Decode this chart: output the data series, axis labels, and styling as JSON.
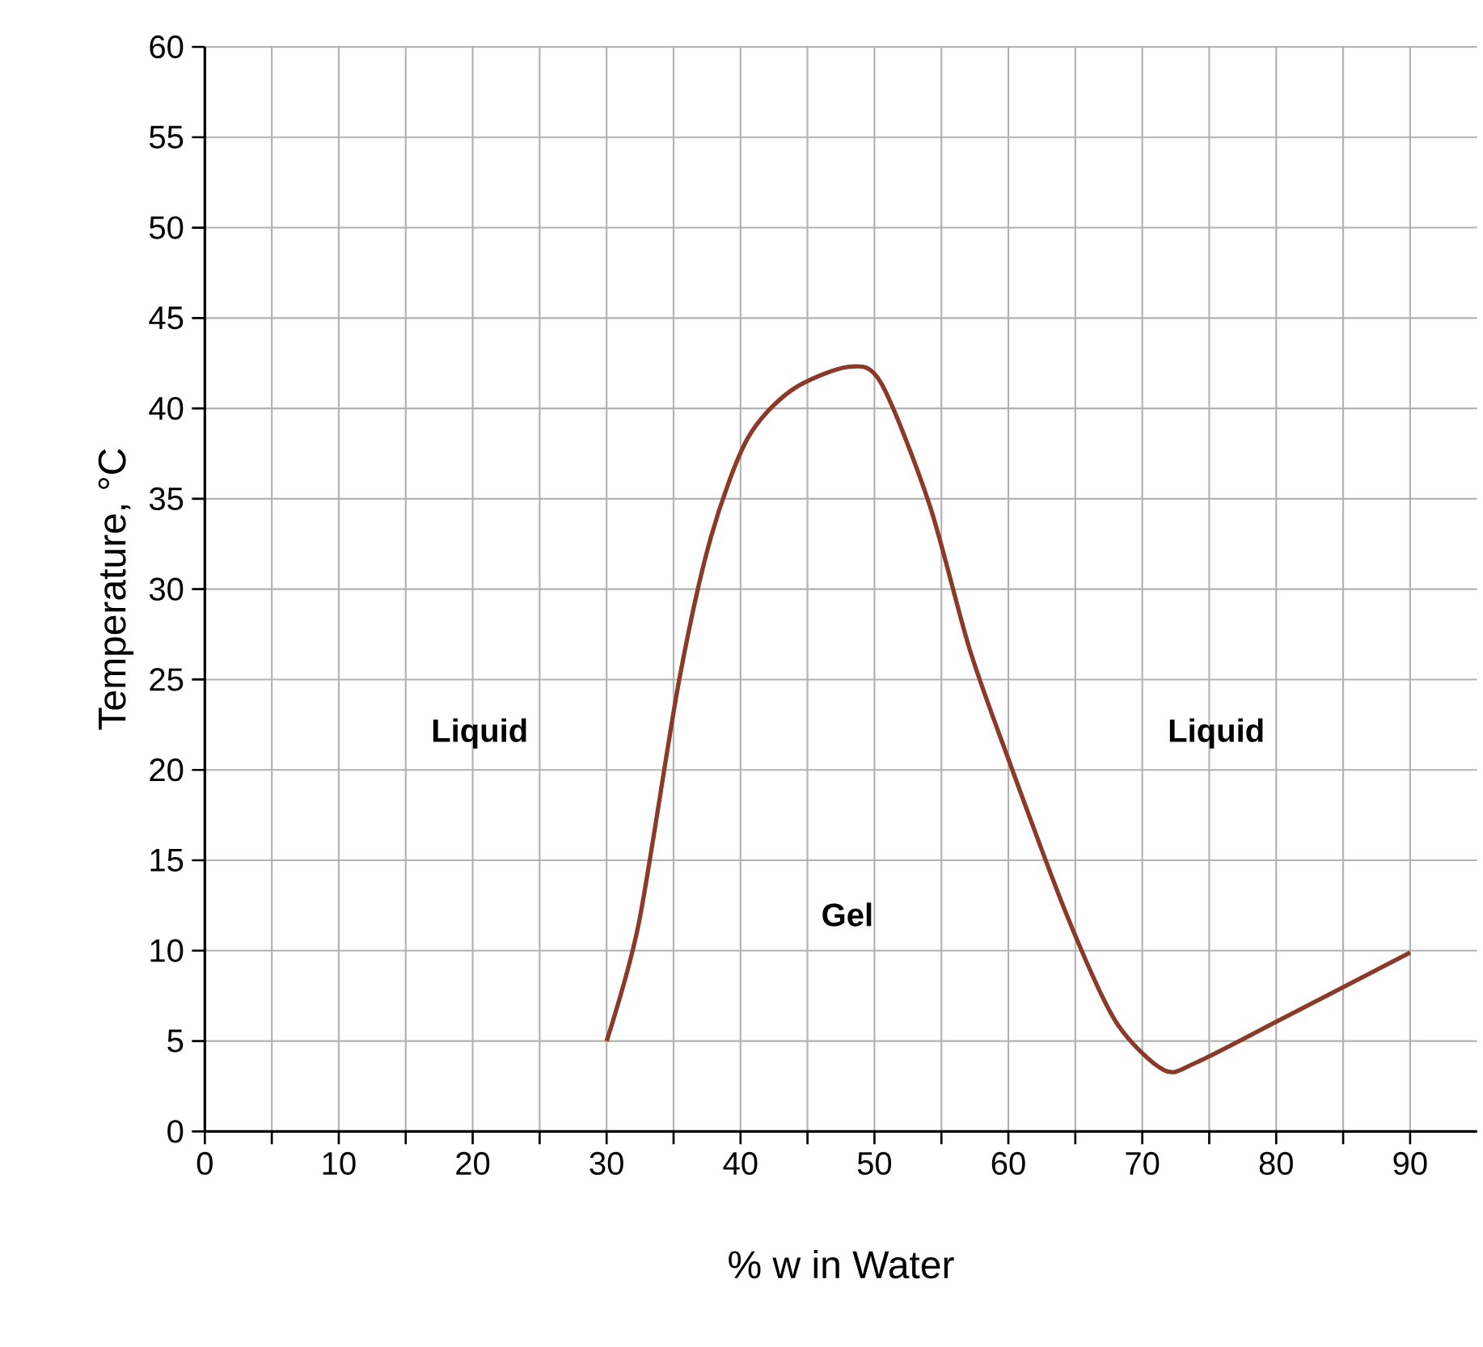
{
  "chart_data": {
    "type": "line",
    "xlabel": "% w in Water",
    "ylabel": "Temperature, °C",
    "x": [
      30,
      32.4,
      35.4,
      37.8,
      40.5,
      43.8,
      48.1,
      50.5,
      54.1,
      57.1,
      60.1,
      64.4,
      68,
      71.6,
      74,
      80.1,
      90
    ],
    "series": [
      {
        "color": "#8b3a2a",
        "values": [
          5,
          11.5,
          24.9,
          32.9,
          38.3,
          41,
          42.3,
          41.4,
          34.7,
          26.7,
          20.4,
          11.9,
          6.1,
          3.4,
          3.8,
          6.1,
          9.9
        ]
      }
    ],
    "xlim": [
      0,
      95
    ],
    "ylim": [
      0,
      60
    ],
    "xticks": [
      0,
      {
        "value": 5,
        "label": null
      },
      10,
      {
        "value": 15,
        "label": null
      },
      20,
      {
        "value": 25,
        "label": null
      },
      30,
      {
        "value": 35,
        "label": null
      },
      40,
      {
        "value": 45,
        "label": null
      },
      50,
      {
        "value": 55,
        "label": null
      },
      60,
      {
        "value": 65,
        "label": null
      },
      70,
      {
        "value": 75,
        "label": null
      },
      80,
      {
        "value": 85,
        "label": null
      },
      90
    ],
    "yticks": [
      0,
      5,
      10,
      15,
      20,
      25,
      30,
      35,
      40,
      45,
      50,
      55,
      60
    ],
    "grid": true,
    "marker": "none",
    "line_style": "solid",
    "annotations": [
      "Liquid",
      "Gel",
      "Liquid"
    ]
  }
}
